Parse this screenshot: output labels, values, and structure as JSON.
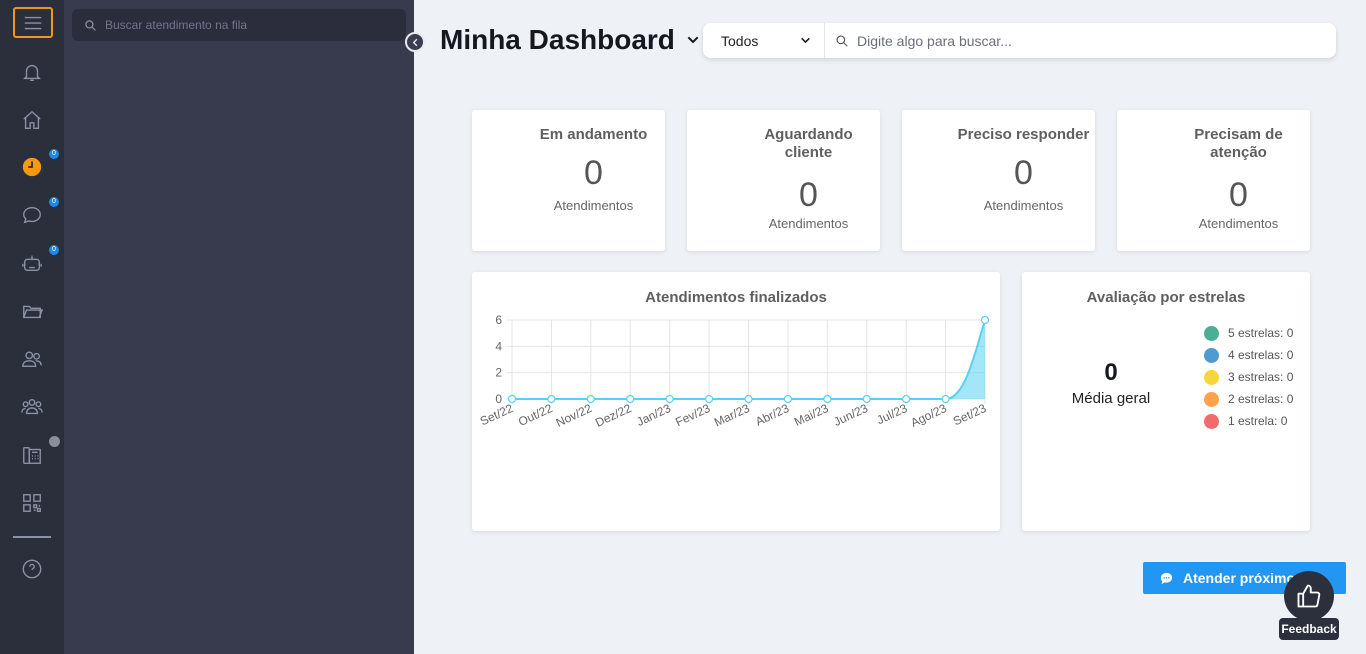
{
  "rail": {
    "items": [
      {
        "name": "menu-icon"
      },
      {
        "name": "bell-icon"
      },
      {
        "name": "home-icon"
      },
      {
        "name": "clock-icon",
        "badge": "0"
      },
      {
        "name": "chat-icon",
        "badge": "0"
      },
      {
        "name": "robot-icon",
        "badge": "0"
      },
      {
        "name": "folder-icon"
      },
      {
        "name": "contacts-icon"
      },
      {
        "name": "groups-icon"
      },
      {
        "name": "phone-icon"
      },
      {
        "name": "qrcode-icon"
      },
      {
        "name": "help-icon"
      }
    ]
  },
  "queue": {
    "search_placeholder": "Buscar atendimento na fila"
  },
  "header": {
    "title": "Minha Dashboard",
    "filter_value": "Todos",
    "search_placeholder": "Digite algo para buscar..."
  },
  "cards": [
    {
      "title": "Em andamento",
      "value": "0",
      "sub": "Atendimentos",
      "color": "#fca34e",
      "icon": "chat-bubble-icon"
    },
    {
      "title": "Aguardando cliente",
      "value": "0",
      "sub": "Atendimentos",
      "color": "#69b7a8",
      "icon": "hourglass-icon"
    },
    {
      "title": "Preciso responder",
      "value": "0",
      "sub": "Atendimentos",
      "color": "#eb6d6d",
      "icon": "warning-icon"
    },
    {
      "title": "Precisam de atenção",
      "value": "0",
      "sub": "Atendimentos",
      "color": "#f0c30f",
      "icon": "warning-icon"
    }
  ],
  "finished_panel": {
    "title": "Atendimentos finalizados"
  },
  "chart_data": {
    "type": "area",
    "title": "Atendimentos finalizados",
    "categories": [
      "Set/22",
      "Out/22",
      "Nov/22",
      "Dez/22",
      "Jan/23",
      "Fev/23",
      "Mar/23",
      "Abr/23",
      "Mai/23",
      "Jun/23",
      "Jul/23",
      "Ago/23",
      "Set/23"
    ],
    "values": [
      0,
      0,
      0,
      0,
      0,
      0,
      0,
      0,
      0,
      0,
      0,
      0,
      6
    ],
    "yticks": [
      0,
      2,
      4,
      6
    ],
    "ylim": [
      0,
      6
    ],
    "grid": true,
    "color": "#56d2f0"
  },
  "rating_panel": {
    "title": "Avaliação por estrelas",
    "value": "0",
    "label": "Média geral",
    "legend": [
      {
        "label": "5 estrelas: 0",
        "color": "#4caf93"
      },
      {
        "label": "4 estrelas: 0",
        "color": "#4f9ad0"
      },
      {
        "label": "3 estrelas: 0",
        "color": "#f7d63c"
      },
      {
        "label": "2 estrelas: 0",
        "color": "#fca34e"
      },
      {
        "label": "1 estrela: 0",
        "color": "#f26a6a"
      }
    ]
  },
  "actions": {
    "next_label": "Atender próximo",
    "feedback_label": "Feedback"
  }
}
